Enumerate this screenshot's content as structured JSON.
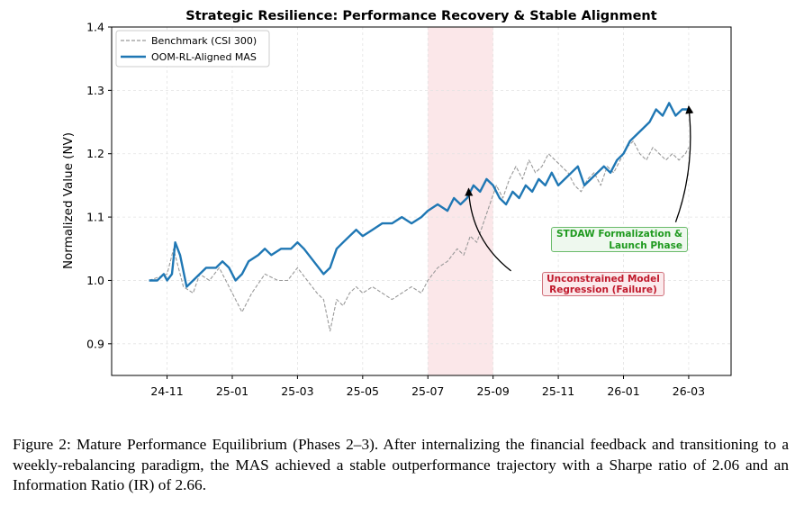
{
  "chart_data": {
    "type": "line",
    "title": "Strategic Resilience: Performance Recovery & Stable Alignment",
    "xlabel": "",
    "ylabel": "Normalized Value (NV)",
    "ylim": [
      0.85,
      1.4
    ],
    "yticks": [
      "0.9",
      "1.0",
      "1.1",
      "1.2",
      "1.3",
      "1.4"
    ],
    "ytick_values": [
      0.9,
      1.0,
      1.1,
      1.2,
      1.3,
      1.4
    ],
    "xticks": [
      "24-11",
      "25-01",
      "25-03",
      "25-05",
      "25-07",
      "25-09",
      "25-11",
      "26-01",
      "26-03"
    ],
    "xtick_index": [
      0,
      2,
      4,
      6,
      8,
      10,
      12,
      14,
      16
    ],
    "xlim_index": [
      -1.7,
      17.3
    ],
    "grid": true,
    "legend_position": "top-left",
    "shaded_region": {
      "from_index": 8.0,
      "to_index": 10.0,
      "color": "#f9dfe2",
      "label": ""
    },
    "series": [
      {
        "name": "Benchmark (CSI 300)",
        "style": "dashed",
        "color": "#999999",
        "x": [
          -0.55,
          0.0,
          0.2,
          0.35,
          0.5,
          0.8,
          1.0,
          1.3,
          1.6,
          1.9,
          2.1,
          2.3,
          2.6,
          3.0,
          3.4,
          3.7,
          4.0,
          4.3,
          4.6,
          4.8,
          5.0,
          5.2,
          5.4,
          5.6,
          5.8,
          6.0,
          6.3,
          6.6,
          6.9,
          7.2,
          7.5,
          7.8,
          8.0,
          8.3,
          8.6,
          8.9,
          9.1,
          9.3,
          9.5,
          9.7,
          9.9,
          10.1,
          10.3,
          10.5,
          10.7,
          10.9,
          11.1,
          11.3,
          11.5,
          11.7,
          11.9,
          12.1,
          12.3,
          12.5,
          12.7,
          12.9,
          13.1,
          13.3,
          13.5,
          13.7,
          13.9,
          14.1,
          14.3,
          14.5,
          14.7,
          14.9,
          15.1,
          15.3,
          15.5,
          15.7,
          15.9,
          16.0
        ],
        "values": [
          1.0,
          1.01,
          1.05,
          1.02,
          0.99,
          0.98,
          1.01,
          1.0,
          1.02,
          0.99,
          0.97,
          0.95,
          0.98,
          1.01,
          1.0,
          1.0,
          1.02,
          1.0,
          0.98,
          0.97,
          0.92,
          0.97,
          0.96,
          0.98,
          0.99,
          0.98,
          0.99,
          0.98,
          0.97,
          0.98,
          0.99,
          0.98,
          1.0,
          1.02,
          1.03,
          1.05,
          1.04,
          1.07,
          1.06,
          1.09,
          1.12,
          1.15,
          1.13,
          1.16,
          1.18,
          1.16,
          1.19,
          1.17,
          1.18,
          1.2,
          1.19,
          1.18,
          1.17,
          1.15,
          1.14,
          1.16,
          1.17,
          1.15,
          1.18,
          1.17,
          1.19,
          1.21,
          1.22,
          1.2,
          1.19,
          1.21,
          1.2,
          1.19,
          1.2,
          1.19,
          1.2,
          1.21
        ]
      },
      {
        "name": "OOM-RL-Aligned MAS",
        "style": "solid",
        "color": "#1f77b4",
        "x": [
          -0.55,
          -0.3,
          -0.1,
          0.0,
          0.15,
          0.25,
          0.4,
          0.6,
          0.8,
          1.0,
          1.2,
          1.5,
          1.7,
          1.9,
          2.1,
          2.3,
          2.5,
          2.8,
          3.0,
          3.2,
          3.5,
          3.8,
          4.0,
          4.2,
          4.5,
          4.8,
          5.0,
          5.2,
          5.4,
          5.6,
          5.8,
          6.0,
          6.3,
          6.6,
          6.9,
          7.2,
          7.5,
          7.8,
          8.0,
          8.3,
          8.6,
          8.8,
          9.0,
          9.2,
          9.4,
          9.6,
          9.8,
          10.0,
          10.2,
          10.4,
          10.6,
          10.8,
          11.0,
          11.2,
          11.4,
          11.6,
          11.8,
          12.0,
          12.2,
          12.4,
          12.6,
          12.8,
          13.0,
          13.2,
          13.4,
          13.6,
          13.8,
          14.0,
          14.2,
          14.4,
          14.6,
          14.8,
          15.0,
          15.2,
          15.4,
          15.6,
          15.8,
          16.0
        ],
        "values": [
          1.0,
          1.0,
          1.01,
          1.0,
          1.01,
          1.06,
          1.04,
          0.99,
          1.0,
          1.01,
          1.02,
          1.02,
          1.03,
          1.02,
          1.0,
          1.01,
          1.03,
          1.04,
          1.05,
          1.04,
          1.05,
          1.05,
          1.06,
          1.05,
          1.03,
          1.01,
          1.02,
          1.05,
          1.06,
          1.07,
          1.08,
          1.07,
          1.08,
          1.09,
          1.09,
          1.1,
          1.09,
          1.1,
          1.11,
          1.12,
          1.11,
          1.13,
          1.12,
          1.13,
          1.15,
          1.14,
          1.16,
          1.15,
          1.13,
          1.12,
          1.14,
          1.13,
          1.15,
          1.14,
          1.16,
          1.15,
          1.17,
          1.15,
          1.16,
          1.17,
          1.18,
          1.15,
          1.16,
          1.17,
          1.18,
          1.17,
          1.19,
          1.2,
          1.22,
          1.23,
          1.24,
          1.25,
          1.27,
          1.26,
          1.28,
          1.26,
          1.27,
          1.27
        ]
      }
    ],
    "annotations": [
      {
        "lines": [
          "Unconstrained Model",
          "Regression (Failure)"
        ],
        "color": "#c0192c",
        "target_index": 9.25,
        "target_value": 1.145,
        "text_index": 10.55,
        "text_value": 1.015
      },
      {
        "lines": [
          "STDAW Formalization &",
          "Launch Phase"
        ],
        "color": "#1f9a1f",
        "target_index": 16.0,
        "target_value": 1.275,
        "text_index": 15.6,
        "text_value": 1.092
      }
    ]
  },
  "caption": {
    "figure_label": "Figure 2:",
    "text": "Mature Performance Equilibrium (Phases 2–3). After internalizing the financial feedback and transitioning to a weekly-rebalancing paradigm, the MAS achieved a stable outperformance trajectory with a Sharpe ratio of 2.06 and an Information Ratio (IR) of 2.66."
  }
}
